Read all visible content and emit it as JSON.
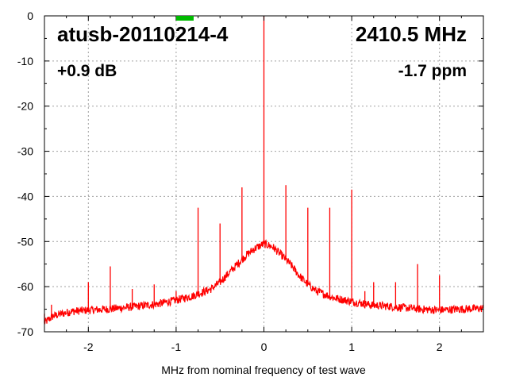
{
  "chart_data": {
    "type": "line",
    "title": "",
    "xlabel": "MHz from nominal frequency of test wave",
    "ylabel": "",
    "xlim": [
      -2.5,
      2.5
    ],
    "ylim": [
      -70,
      0
    ],
    "x_ticks": [
      -2,
      -1,
      0,
      1,
      2
    ],
    "x_tick_labels": [
      "-2",
      "-1",
      "0",
      "1",
      "2"
    ],
    "y_ticks": [
      0,
      -10,
      -20,
      -30,
      -40,
      -50,
      -60,
      -70
    ],
    "y_tick_labels": [
      "0",
      "-10",
      "-20",
      "-30",
      "-40",
      "-50",
      "-60",
      "-70"
    ],
    "grid": true,
    "legend": "none",
    "series_color": "#ff0000",
    "marker_color": "#00bb00",
    "marker_x": -0.9,
    "annotations": {
      "device": "atusb-20110214-4",
      "frequency": "2410.5 MHz",
      "offset_db": "+0.9 dB",
      "ppm": "-1.7 ppm"
    },
    "noise_floor": [
      [
        -2.5,
        -68
      ],
      [
        -2.4,
        -66.5
      ],
      [
        -2.2,
        -65.5
      ],
      [
        -2.0,
        -65.2
      ],
      [
        -1.8,
        -65
      ],
      [
        -1.5,
        -64.5
      ],
      [
        -1.2,
        -63.8
      ],
      [
        -1.0,
        -63
      ],
      [
        -0.8,
        -62
      ],
      [
        -0.6,
        -60.5
      ],
      [
        -0.5,
        -59
      ],
      [
        -0.4,
        -57
      ],
      [
        -0.3,
        -55
      ],
      [
        -0.2,
        -53
      ],
      [
        -0.1,
        -51.5
      ],
      [
        0.0,
        -50.5
      ],
      [
        0.1,
        -51.2
      ],
      [
        0.2,
        -53
      ],
      [
        0.3,
        -55
      ],
      [
        0.4,
        -57.5
      ],
      [
        0.5,
        -59.5
      ],
      [
        0.6,
        -61
      ],
      [
        0.8,
        -62.5
      ],
      [
        1.0,
        -63.3
      ],
      [
        1.2,
        -64
      ],
      [
        1.5,
        -64.5
      ],
      [
        1.8,
        -65
      ],
      [
        2.0,
        -65.2
      ],
      [
        2.2,
        -65
      ],
      [
        2.5,
        -64.8
      ]
    ],
    "spurs": [
      [
        -2.5,
        -66
      ],
      [
        -2.42,
        -64
      ],
      [
        -2.0,
        -59
      ],
      [
        -1.75,
        -55.5
      ],
      [
        -1.5,
        -60.5
      ],
      [
        -1.25,
        -59.5
      ],
      [
        -1.0,
        -61
      ],
      [
        -0.75,
        -42.5
      ],
      [
        -0.5,
        -46
      ],
      [
        -0.25,
        -38
      ],
      [
        -0.05,
        -50.5
      ],
      [
        0.0,
        0
      ],
      [
        0.25,
        -37.5
      ],
      [
        0.5,
        -42.5
      ],
      [
        0.75,
        -42.5
      ],
      [
        1.0,
        -38.5
      ],
      [
        1.15,
        -61
      ],
      [
        1.25,
        -59
      ],
      [
        1.5,
        -59
      ],
      [
        1.75,
        -55
      ],
      [
        2.0,
        -57.5
      ]
    ]
  }
}
